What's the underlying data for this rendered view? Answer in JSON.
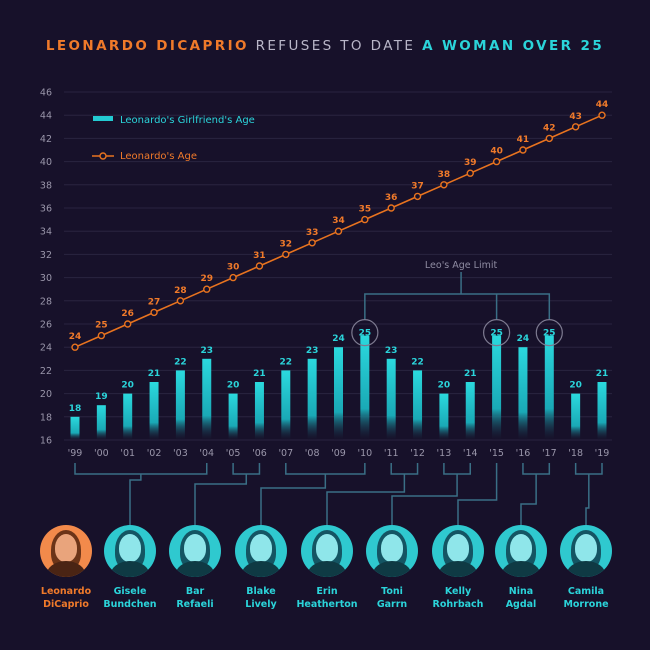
{
  "title": {
    "part1": "LEONARDO DICAPRIO",
    "part2": " REFUSES TO DATE ",
    "part3": "A WOMAN OVER 25"
  },
  "colors": {
    "background": "#17112a",
    "bar": "#23cbd2",
    "line": "#e8731f",
    "label_orange": "#f07a2a",
    "label_teal": "#2bd4da",
    "axis_text": "#9a96aa",
    "connector": "#3a6f86"
  },
  "chart_data": {
    "type": "bar",
    "categories": [
      "'99",
      "'00",
      "'01",
      "'02",
      "'03",
      "'04",
      "'05",
      "'06",
      "'07",
      "'08",
      "'09",
      "'10",
      "'11",
      "'12",
      "'13",
      "'14",
      "'15",
      "'16",
      "'17",
      "'18",
      "'19"
    ],
    "series": [
      {
        "name": "Leonardo's Girlfriend's Age",
        "type": "bar",
        "values": [
          18,
          19,
          20,
          21,
          22,
          23,
          20,
          21,
          22,
          23,
          24,
          25,
          23,
          22,
          20,
          21,
          25,
          24,
          25,
          20,
          21
        ]
      },
      {
        "name": "Leonardo's Age",
        "type": "line",
        "values": [
          24,
          25,
          26,
          27,
          28,
          29,
          30,
          31,
          32,
          33,
          34,
          35,
          36,
          37,
          38,
          39,
          40,
          41,
          42,
          43,
          44
        ]
      }
    ],
    "ylim": [
      16,
      46
    ],
    "yticks": [
      16,
      18,
      20,
      22,
      24,
      26,
      28,
      30,
      32,
      34,
      36,
      38,
      40,
      42,
      44,
      46
    ],
    "grid": true,
    "legend": "top-left",
    "annotation": {
      "text": "Leo's Age Limit",
      "years": [
        "'10",
        "'15",
        "'17"
      ]
    }
  },
  "people": [
    {
      "name_line1": "Leonardo",
      "name_line2": "DiCaprio",
      "highlight": true
    },
    {
      "name_line1": "Gisele",
      "name_line2": "Bundchen"
    },
    {
      "name_line1": "Bar",
      "name_line2": "Refaeli"
    },
    {
      "name_line1": "Blake",
      "name_line2": "Lively"
    },
    {
      "name_line1": "Erin",
      "name_line2": "Heatherton"
    },
    {
      "name_line1": "Toni",
      "name_line2": "Garrn"
    },
    {
      "name_line1": "Kelly",
      "name_line2": "Rohrbach"
    },
    {
      "name_line1": "Nina",
      "name_line2": "Agdal"
    },
    {
      "name_line1": "Camila",
      "name_line2": "Morrone"
    }
  ]
}
